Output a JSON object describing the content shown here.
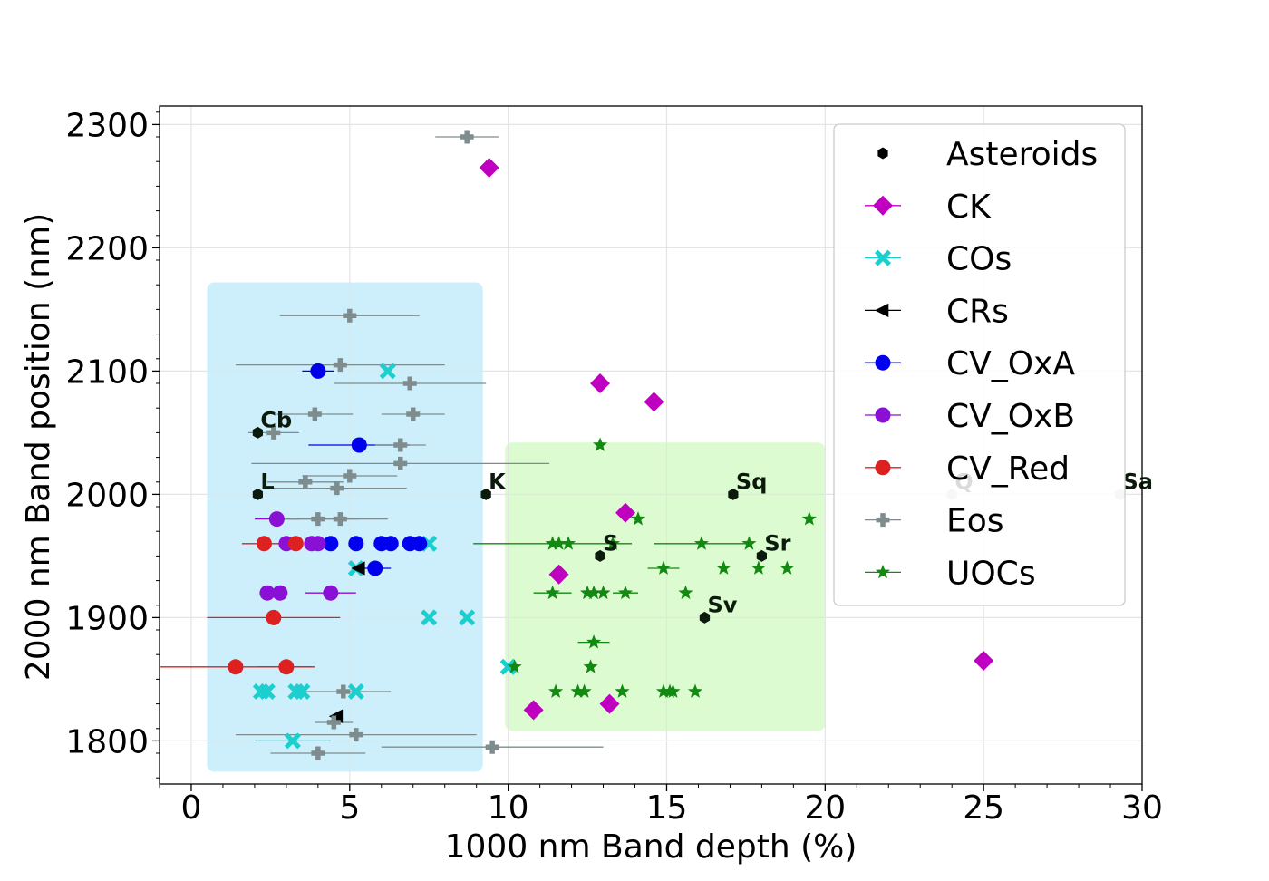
{
  "chart_data": {
    "type": "scatter",
    "xlabel": "1000 nm Band depth (%)",
    "ylabel": "2000 nm Band position (nm)",
    "xlim": [
      -1,
      30
    ],
    "ylim": [
      1765,
      2315
    ],
    "xticks": [
      0,
      5,
      10,
      15,
      20,
      25,
      30
    ],
    "yticks": [
      1800,
      1900,
      2000,
      2100,
      2200,
      2300
    ],
    "grid": true,
    "legend_position": "upper-right",
    "regions": [
      {
        "name": "blue-region",
        "x": [
          0.5,
          9.2
        ],
        "y": [
          1775,
          2172
        ],
        "color": "#cdeffb"
      },
      {
        "name": "green-region",
        "x": [
          9.9,
          20.0
        ],
        "y": [
          1808,
          2042
        ],
        "color": "#dcfbd0"
      }
    ],
    "series": [
      {
        "name": "Asteroids",
        "label": "Asteroids",
        "marker": "hexagon",
        "color": "#000000",
        "points": [
          {
            "x": 2.1,
            "y": 2050,
            "label": "Cb",
            "color": "#0b1a0b"
          },
          {
            "x": 2.1,
            "y": 2000,
            "label": "L",
            "color": "#0b1a0b"
          },
          {
            "x": 9.3,
            "y": 2000,
            "label": "K",
            "color": "#0b1a0b"
          },
          {
            "x": 17.1,
            "y": 2000,
            "label": "Sq",
            "color": "#0b1a0b"
          },
          {
            "x": 24.0,
            "y": 2000,
            "label": "Q",
            "color": "#c8c8c8"
          },
          {
            "x": 29.3,
            "y": 2000,
            "label": "Sa",
            "color": "#c8c8c8"
          },
          {
            "x": 12.9,
            "y": 1950,
            "label": "S",
            "color": "#0b1a0b"
          },
          {
            "x": 18.0,
            "y": 1950,
            "label": "Sr",
            "color": "#0b1a0b"
          },
          {
            "x": 16.2,
            "y": 1900,
            "label": "Sv",
            "color": "#0b1a0b"
          }
        ]
      },
      {
        "name": "CK",
        "label": "CK",
        "marker": "diamond",
        "color": "#c000c0",
        "points": [
          {
            "x": 9.4,
            "y": 2265
          },
          {
            "x": 12.9,
            "y": 2090
          },
          {
            "x": 14.6,
            "y": 2075
          },
          {
            "x": 13.7,
            "y": 1985
          },
          {
            "x": 11.6,
            "y": 1935
          },
          {
            "x": 25.0,
            "y": 1865
          },
          {
            "x": 10.8,
            "y": 1825
          },
          {
            "x": 13.2,
            "y": 1830
          }
        ]
      },
      {
        "name": "COs",
        "label": "COs",
        "marker": "x",
        "color": "#1ccfcf",
        "points": [
          {
            "x": 6.2,
            "y": 2100
          },
          {
            "x": 7.5,
            "y": 1960
          },
          {
            "x": 5.2,
            "y": 1940
          },
          {
            "x": 7.5,
            "y": 1900
          },
          {
            "x": 8.7,
            "y": 1900
          },
          {
            "x": 10.0,
            "y": 1860
          },
          {
            "x": 2.2,
            "y": 1840
          },
          {
            "x": 2.4,
            "y": 1840
          },
          {
            "x": 3.3,
            "y": 1840
          },
          {
            "x": 3.5,
            "y": 1840
          },
          {
            "x": 5.2,
            "y": 1840
          },
          {
            "x": 3.2,
            "y": 1800,
            "xerr": 1.2
          }
        ]
      },
      {
        "name": "CRs",
        "label": "CRs",
        "marker": "triangle-left",
        "color": "#000000",
        "points": [
          {
            "x": 5.3,
            "y": 1940
          },
          {
            "x": 4.6,
            "y": 1820
          }
        ]
      },
      {
        "name": "CV_OxA",
        "label": "CV_OxA",
        "marker": "circle",
        "color": "#0000ee",
        "points": [
          {
            "x": 4.0,
            "y": 2100,
            "xerr": 0.5
          },
          {
            "x": 5.3,
            "y": 2040,
            "xerr": 1.6
          },
          {
            "x": 4.4,
            "y": 1960
          },
          {
            "x": 5.2,
            "y": 1960
          },
          {
            "x": 6.0,
            "y": 1960
          },
          {
            "x": 6.3,
            "y": 1960
          },
          {
            "x": 6.9,
            "y": 1960
          },
          {
            "x": 7.2,
            "y": 1960
          },
          {
            "x": 5.8,
            "y": 1940,
            "xerr": 0.5
          }
        ]
      },
      {
        "name": "CV_OxB",
        "label": "CV_OxB",
        "marker": "circle",
        "color": "#8a10d6",
        "points": [
          {
            "x": 2.7,
            "y": 1980,
            "xerr": 0.7
          },
          {
            "x": 3.0,
            "y": 1960
          },
          {
            "x": 3.8,
            "y": 1960
          },
          {
            "x": 4.0,
            "y": 1960
          },
          {
            "x": 2.4,
            "y": 1920
          },
          {
            "x": 2.8,
            "y": 1920
          },
          {
            "x": 4.4,
            "y": 1920,
            "xerr": 0.8
          }
        ]
      },
      {
        "name": "CV_Red",
        "label": "CV_Red",
        "marker": "circle",
        "color": "#dd2020",
        "points": [
          {
            "x": 2.3,
            "y": 1960,
            "xerr": 0.7
          },
          {
            "x": 3.3,
            "y": 1960
          },
          {
            "x": 2.6,
            "y": 1900,
            "xerr": 2.1
          },
          {
            "x": 1.4,
            "y": 1860,
            "xerr": 2.4
          },
          {
            "x": 3.0,
            "y": 1860,
            "xerr": 0.9
          }
        ]
      },
      {
        "name": "Eos",
        "label": "Eos",
        "marker": "plus",
        "color": "#7f8c8d",
        "points": [
          {
            "x": 8.7,
            "y": 2290,
            "xerr": 1.0
          },
          {
            "x": 5.0,
            "y": 2145,
            "xerr": 2.2
          },
          {
            "x": 4.7,
            "y": 2105,
            "xerr": 3.3
          },
          {
            "x": 6.9,
            "y": 2090,
            "xerr": 2.4
          },
          {
            "x": 3.9,
            "y": 2065,
            "xerr": 1.2
          },
          {
            "x": 7.0,
            "y": 2065,
            "xerr": 1.0
          },
          {
            "x": 2.6,
            "y": 2050,
            "xerr": 0.8
          },
          {
            "x": 6.6,
            "y": 2040,
            "xerr": 0.8
          },
          {
            "x": 6.6,
            "y": 2025,
            "xerr": 4.7
          },
          {
            "x": 5.0,
            "y": 2015,
            "xerr": 1.5
          },
          {
            "x": 3.6,
            "y": 2010,
            "xerr": 1.2
          },
          {
            "x": 4.6,
            "y": 2005,
            "xerr": 2.2
          },
          {
            "x": 4.0,
            "y": 1980,
            "xerr": 1.3
          },
          {
            "x": 4.7,
            "y": 1980,
            "xerr": 1.5
          },
          {
            "x": 4.8,
            "y": 1840,
            "xerr": 1.5
          },
          {
            "x": 4.5,
            "y": 1815,
            "xerr": 0.6
          },
          {
            "x": 5.2,
            "y": 1805,
            "xerr": 3.8
          },
          {
            "x": 9.5,
            "y": 1795,
            "xerr": 3.5
          },
          {
            "x": 4.0,
            "y": 1790,
            "xerr": 1.5
          }
        ]
      },
      {
        "name": "UOCs",
        "label": "UOCs",
        "marker": "star",
        "color": "#128a12",
        "points": [
          {
            "x": 12.9,
            "y": 2040
          },
          {
            "x": 14.1,
            "y": 1980
          },
          {
            "x": 19.5,
            "y": 1980
          },
          {
            "x": 11.4,
            "y": 1960,
            "xerr": 2.5
          },
          {
            "x": 11.6,
            "y": 1960
          },
          {
            "x": 11.9,
            "y": 1960
          },
          {
            "x": 13.3,
            "y": 1960
          },
          {
            "x": 16.1,
            "y": 1960,
            "xerr": 1.5
          },
          {
            "x": 17.6,
            "y": 1960
          },
          {
            "x": 14.9,
            "y": 1940,
            "xerr": 0.5
          },
          {
            "x": 16.8,
            "y": 1940
          },
          {
            "x": 17.9,
            "y": 1940
          },
          {
            "x": 18.8,
            "y": 1940
          },
          {
            "x": 11.4,
            "y": 1920,
            "xerr": 0.6
          },
          {
            "x": 12.5,
            "y": 1920
          },
          {
            "x": 12.7,
            "y": 1920
          },
          {
            "x": 13.0,
            "y": 1920
          },
          {
            "x": 13.7,
            "y": 1920,
            "xerr": 0.4
          },
          {
            "x": 15.6,
            "y": 1920
          },
          {
            "x": 12.7,
            "y": 1880,
            "xerr": 0.5
          },
          {
            "x": 10.2,
            "y": 1860
          },
          {
            "x": 12.6,
            "y": 1860
          },
          {
            "x": 11.5,
            "y": 1840
          },
          {
            "x": 12.2,
            "y": 1840
          },
          {
            "x": 12.4,
            "y": 1840
          },
          {
            "x": 13.6,
            "y": 1840
          },
          {
            "x": 14.9,
            "y": 1840
          },
          {
            "x": 15.1,
            "y": 1840
          },
          {
            "x": 15.2,
            "y": 1840
          },
          {
            "x": 15.9,
            "y": 1840
          }
        ]
      }
    ]
  }
}
